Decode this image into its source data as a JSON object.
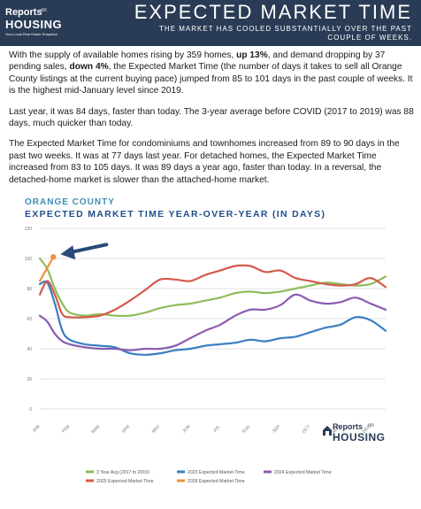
{
  "header": {
    "logo": {
      "top": "Reports",
      "on": "on",
      "main": "HOUSING",
      "tagline": "Your Local Real Estate Snapshot"
    },
    "title": "EXPECTED MARKET TIME",
    "subtitle": "THE MARKET HAS COOLED SUBSTANTIALLY OVER THE PAST COUPLE OF WEEKS."
  },
  "body": {
    "p1": [
      {
        "text": "With the supply of available homes rising by 359 homes, ",
        "bold": false
      },
      {
        "text": "up 13%",
        "bold": true
      },
      {
        "text": ", and demand dropping by 37 pending sales, ",
        "bold": false
      },
      {
        "text": "down 4%",
        "bold": true
      },
      {
        "text": ", the Expected Market Time (the number of days it takes to sell all Orange County listings at the current buying pace) jumped from 85 to 101 days in the past couple of weeks. It is the highest mid-January level since 2019.",
        "bold": false
      }
    ],
    "p2": "Last year, it was 84 days, faster than today. The 3-year average before COVID (2017 to 2019) was 88 days, much quicker than today.",
    "p3": "The Expected Market Time for condominiums and townhomes increased from 89 to 90 days in the past two weeks. It was at 77 days last year. For detached homes, the Expected Market Time increased from 83 to 105 days. It was 89 days a year ago, faster than today. In a reversal, the detached-home market is slower than the attached-home market."
  },
  "watermark": {
    "top": "Reports",
    "on": "on",
    "main": "HOUSING"
  },
  "chart_data": {
    "type": "line",
    "kicker": "ORANGE COUNTY",
    "title": "EXPECTED MARKET TIME YEAR-OVER-YEAR (IN DAYS)",
    "ylim": [
      0,
      120
    ],
    "yticks": [
      0,
      20,
      40,
      60,
      80,
      100,
      120
    ],
    "x_ticks": [
      "JAN",
      "FEB",
      "MAR",
      "APR",
      "MAY",
      "JUN",
      "JUL",
      "AUG",
      "SEP",
      "OCT",
      "NOV",
      "DEC"
    ],
    "grid": true,
    "legend_position": "bottom",
    "annotation": "arrow pointing to the latest 2026 value",
    "series": [
      {
        "name": "3 Year Avg (2017 to 2019)",
        "color": "#8fbc5a",
        "x": [
          0,
          0.25,
          0.5,
          0.75,
          1,
          1.5,
          2,
          2.5,
          3,
          3.5,
          4,
          4.5,
          5,
          5.5,
          6,
          6.5,
          7,
          7.5,
          8,
          8.5,
          9,
          9.5,
          10,
          10.5,
          11,
          11.5
        ],
        "y": [
          100,
          93,
          80,
          70,
          64,
          62,
          63,
          62,
          62,
          64,
          67,
          69,
          70,
          72,
          74,
          77,
          78,
          77,
          78,
          80,
          82,
          84,
          83,
          82,
          83,
          88
        ]
      },
      {
        "name": "2023 Expected Market Time",
        "color": "#3a7fc1",
        "x": [
          0,
          0.25,
          0.5,
          0.75,
          1,
          1.5,
          2,
          2.5,
          3,
          3.5,
          4,
          4.5,
          5,
          5.5,
          6,
          6.5,
          7,
          7.5,
          8,
          8.5,
          9,
          9.5,
          10,
          10.5,
          11,
          11.5
        ],
        "y": [
          83,
          84,
          70,
          52,
          46,
          43,
          42,
          41,
          37,
          36,
          37,
          39,
          40,
          42,
          43,
          44,
          46,
          45,
          47,
          48,
          51,
          54,
          56,
          61,
          59,
          52
        ]
      },
      {
        "name": "2024 Expected Market Time",
        "color": "#8a5cb0",
        "x": [
          0,
          0.25,
          0.5,
          0.75,
          1,
          1.5,
          2,
          2.5,
          3,
          3.5,
          4,
          4.5,
          5,
          5.5,
          6,
          6.5,
          7,
          7.5,
          8,
          8.5,
          9,
          9.5,
          10,
          10.5,
          11,
          11.5
        ],
        "y": [
          62,
          58,
          50,
          45,
          43,
          41,
          40,
          40,
          39,
          40,
          40,
          42,
          47,
          52,
          56,
          62,
          66,
          66,
          69,
          76,
          72,
          70,
          71,
          74,
          70,
          66
        ]
      },
      {
        "name": "2025 Expected Market Time",
        "color": "#d45a4c",
        "x": [
          0,
          0.25,
          0.5,
          0.75,
          1,
          1.5,
          2,
          2.5,
          3,
          3.5,
          4,
          4.5,
          5,
          5.5,
          6,
          6.5,
          7,
          7.5,
          8,
          8.5,
          9,
          9.5,
          10,
          10.5,
          11,
          11.5
        ],
        "y": [
          76,
          85,
          76,
          63,
          61,
          61,
          62,
          66,
          72,
          79,
          86,
          86,
          85,
          89,
          92,
          95,
          95,
          91,
          92,
          87,
          85,
          83,
          82,
          83,
          87,
          81
        ]
      },
      {
        "name": "2026 Expected Market Time",
        "color": "#f0913a",
        "x": [
          0,
          0.45
        ],
        "y": [
          85,
          101
        ]
      }
    ]
  }
}
